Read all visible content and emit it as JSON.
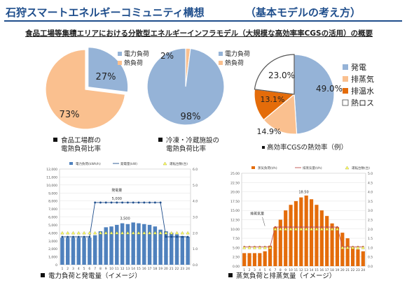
{
  "header": {
    "title": "石狩スマートエネルギーコミュニティ構想",
    "subtitle_paren": "（基本モデルの考え方）",
    "overview": "食品工場等集積エリアにおける分散型エネルギーインフラモデル（大規模な高効率率CGSの活用）の概要"
  },
  "colors": {
    "blue": "#95b3d7",
    "peach": "#fac08f",
    "orange": "#e46c0a",
    "white": "#ffffff",
    "title": "#1f4e8c"
  },
  "chart_data": [
    {
      "type": "pie",
      "categories": [
        "電力負荷",
        "熱負荷"
      ],
      "values": [
        73,
        27
      ],
      "value_labels": [
        "73%",
        "27%"
      ],
      "legend": [
        "電力負荷",
        "熱負荷"
      ],
      "caption_lines": [
        "食品工場群の",
        "電熱負荷比率"
      ]
    },
    {
      "type": "pie",
      "categories": [
        "電力負荷",
        "熱負荷"
      ],
      "values": [
        98,
        2
      ],
      "value_labels": [
        "98%",
        "2%"
      ],
      "legend": [
        "電力負荷",
        "熱負荷"
      ],
      "caption_lines": [
        "冷凍・冷蔵施設の",
        "電熱負荷比率"
      ]
    },
    {
      "type": "pie",
      "categories": [
        "発電",
        "排蒸気",
        "排温水",
        "熱ロス"
      ],
      "values": [
        49.0,
        14.9,
        13.1,
        23.0
      ],
      "value_labels": [
        "49.0%",
        "14.9%",
        "13.1%",
        "23.0%"
      ],
      "legend": [
        "発電",
        "排蒸気",
        "排温水",
        "熱ロス"
      ],
      "caption_lines": [
        "高効率CGSの熱効率（例）"
      ]
    },
    {
      "type": "bar",
      "x": [
        "1",
        "2",
        "3",
        "4",
        "5",
        "6",
        "7",
        "8",
        "9",
        "10",
        "11",
        "12",
        "13",
        "14",
        "15",
        "16",
        "17",
        "18",
        "19",
        "20",
        "21",
        "22",
        "23",
        "24"
      ],
      "series": [
        {
          "name": "電力負荷(kWh/h)",
          "values": [
            3400,
            3400,
            3400,
            3400,
            3400,
            3400,
            3700,
            4200,
            4700,
            4800,
            5000,
            5200,
            5100,
            5300,
            5200,
            5100,
            5000,
            4800,
            4400,
            4200,
            4000,
            3800,
            3600,
            3500
          ]
        },
        {
          "name": "発電量(kW)",
          "values": [
            3500,
            3500,
            3500,
            3500,
            3500,
            3500,
            7800,
            7800,
            7800,
            7800,
            7800,
            7800,
            7800,
            7800,
            7800,
            7800,
            7800,
            7800,
            7800,
            3500,
            3500,
            3500,
            3500,
            3500
          ]
        },
        {
          "name": "運転台数(台)",
          "values": [
            2,
            2,
            2,
            2,
            2,
            2,
            2,
            2,
            2,
            2,
            2,
            2,
            2,
            2,
            2,
            2,
            2,
            2,
            2,
            2,
            2,
            2,
            2,
            2
          ]
        }
      ],
      "ylim": [
        0,
        12000
      ],
      "y_ticks": [
        "0",
        "1,000",
        "2,000",
        "3,000",
        "4,000",
        "5,000",
        "6,000",
        "7,000",
        "8,000",
        "9,000",
        "10,000",
        "11,000",
        "12,000"
      ],
      "y2lim": [
        0,
        6.0
      ],
      "y2_ticks": [
        "0.0",
        "1.0",
        "2.0",
        "3.0",
        "4.0",
        "5.0",
        "6.0"
      ],
      "annotations": [
        "発電量",
        "5,000",
        "3,500"
      ],
      "caption_lines": [
        "電力負荷と発電量（イメージ）"
      ]
    },
    {
      "type": "bar",
      "x": [
        "1",
        "2",
        "3",
        "4",
        "5",
        "6",
        "7",
        "8",
        "9",
        "10",
        "11",
        "12",
        "13",
        "14",
        "15",
        "16",
        "17",
        "18",
        "19",
        "20",
        "21",
        "22",
        "23",
        "24"
      ],
      "series": [
        {
          "name": "蒸気負荷(t/h)",
          "values": [
            3.5,
            3.5,
            3.5,
            3.5,
            4.0,
            5.5,
            10.5,
            12.5,
            15.0,
            16.5,
            17.5,
            18.5,
            19.0,
            18.0,
            16.5,
            15.0,
            13.5,
            11.5,
            10.5,
            9.0,
            7.5,
            5.0,
            4.5,
            4.0
          ]
        },
        {
          "name": "排蒸気量(t/h)",
          "values": [
            5.2,
            5.2,
            5.2,
            5.2,
            5.2,
            5.2,
            10.5,
            10.5,
            10.5,
            10.5,
            10.5,
            10.5,
            10.5,
            10.5,
            10.5,
            10.5,
            10.5,
            10.5,
            10.5,
            5.2,
            5.2,
            5.2,
            5.2,
            5.2
          ]
        },
        {
          "name": "運転台数(台)",
          "values": [
            1,
            1,
            1,
            1,
            1,
            1,
            2,
            2,
            2,
            2,
            2,
            2,
            2,
            2,
            2,
            2,
            2,
            2,
            2,
            1,
            1,
            1,
            1,
            1
          ]
        }
      ],
      "ylim": [
        0,
        25
      ],
      "y_ticks": [
        "0.00",
        "2.50",
        "5.00",
        "7.50",
        "10.00",
        "12.50",
        "15.00",
        "17.50",
        "20.00",
        "22.50",
        "25.00"
      ],
      "y2lim": [
        0,
        5.0
      ],
      "y2_ticks": [
        "0.0",
        "0.5",
        "1.0",
        "1.5",
        "2.0",
        "2.5",
        "3.0",
        "3.5",
        "4.0",
        "4.5",
        "5.0"
      ],
      "annotations": [
        "排蒸気量",
        "18.50"
      ],
      "caption_lines": [
        "蒸気負荷と排蒸気量（イメージ）"
      ]
    }
  ]
}
